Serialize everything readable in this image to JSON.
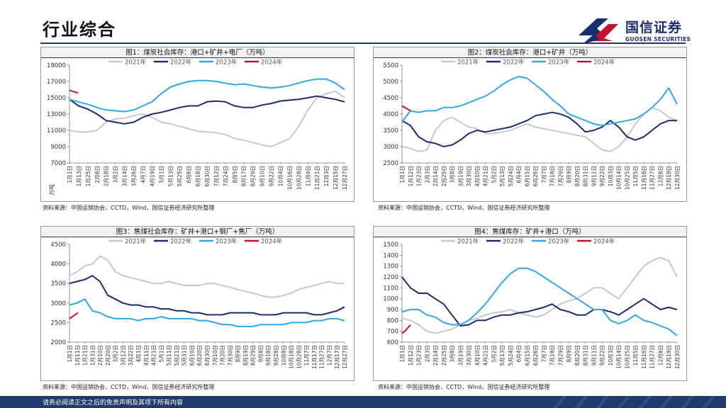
{
  "page": {
    "title": "行业综合",
    "footer": "请务必阅读正文之后的免责声明及其项下所有内容",
    "logo_cn": "国信证券",
    "logo_en": "GUOSEN SECURITIES"
  },
  "colors": {
    "y2021": "#c8c8c8",
    "y2022": "#1a2e6e",
    "y2023": "#2ea9e8",
    "y2024": "#c8102e",
    "brand": "#1f3a6b"
  },
  "chart_data": [
    {
      "id": "chart1",
      "type": "line",
      "title": "图1：煤炭社会库存：港口+矿井+电厂（万吨）",
      "ylabel": "万吨",
      "ylim": [
        7000,
        19000
      ],
      "yticks": [
        7000,
        9000,
        11000,
        13000,
        15000,
        17000,
        19000
      ],
      "xlabels": [
        "1月1日",
        "1月13日",
        "1月25日",
        "2月6日",
        "2月18日",
        "3月2日",
        "3月14日",
        "3月26日",
        "4月7日",
        "4月19日",
        "5月1日",
        "5月13日",
        "5月25日",
        "6月6日",
        "6月18日",
        "6月30日",
        "7月12日",
        "7月24日",
        "8月5日",
        "8月17日",
        "8月29日",
        "9月10日",
        "9月22日",
        "10月4日",
        "10月16日",
        "10月28日",
        "11月9日",
        "11月21日",
        "12月3日",
        "12月15日",
        "12月27日"
      ],
      "source": "资料来源：中国运销协会，CCTD，Wind，国信证券经济研究所整理",
      "series": [
        {
          "name": "2021年",
          "color": "#c8c8c8",
          "values": [
            11000,
            10800,
            10800,
            11000,
            12000,
            12400,
            12500,
            12800,
            13000,
            12600,
            12000,
            11800,
            11500,
            11200,
            10900,
            10800,
            10700,
            10500,
            10000,
            9800,
            9500,
            9200,
            9000,
            9500,
            10000,
            11500,
            13500,
            15000,
            15500,
            15800,
            15000
          ]
        },
        {
          "name": "2022年",
          "color": "#1a2e6e",
          "values": [
            14800,
            14000,
            13600,
            13000,
            12200,
            12000,
            11800,
            12000,
            12600,
            13000,
            13200,
            13500,
            13800,
            14000,
            14000,
            14500,
            14600,
            14500,
            14000,
            13800,
            13800,
            14100,
            14300,
            14600,
            14700,
            14800,
            15000,
            15200,
            15000,
            14800,
            14500
          ]
        },
        {
          "name": "2023年",
          "color": "#2ea9e8",
          "values": [
            14800,
            14500,
            14200,
            13800,
            13500,
            13400,
            13300,
            13500,
            14000,
            14500,
            15500,
            16300,
            16700,
            17000,
            17100,
            17100,
            17000,
            16800,
            16600,
            16700,
            16500,
            16300,
            16200,
            16300,
            16500,
            16800,
            17100,
            17300,
            17300,
            16800,
            16000
          ]
        },
        {
          "name": "2024年",
          "color": "#c8102e",
          "values": [
            15900,
            15800,
            15700,
            15600
          ]
        }
      ]
    },
    {
      "id": "chart2",
      "type": "line",
      "title": "图2：煤炭社会库存：港口+矿井（万吨）",
      "ylabel": "",
      "ylim": [
        2500,
        5500
      ],
      "yticks": [
        2500,
        3000,
        3500,
        4000,
        4500,
        5000,
        5500
      ],
      "xlabels": [
        "1月1日",
        "1月12日",
        "1月23日",
        "2月3日",
        "2月14日",
        "2月25日",
        "3月8日",
        "3月19日",
        "3月30日",
        "4月10日",
        "4月21日",
        "5月2日",
        "5月13日",
        "5月24日",
        "6月4日",
        "6月15日",
        "6月26日",
        "7月7日",
        "7月18日",
        "7月29日",
        "8月9日",
        "8月20日",
        "8月31日",
        "9月11日",
        "9月22日",
        "10月3日",
        "10月14日",
        "10月25日",
        "11月5日",
        "11月16日",
        "11月27日",
        "12月8日",
        "12月19日",
        "12月30日"
      ],
      "source": "资料来源：中国运销协会，CCTD，Wind，国信证券经济研究所整理",
      "series": [
        {
          "name": "2021年",
          "color": "#c8c8c8",
          "values": [
            3000,
            2950,
            2850,
            2900,
            3500,
            3800,
            3900,
            3750,
            3600,
            3550,
            3400,
            3400,
            3450,
            3500,
            3600,
            3700,
            3600,
            3550,
            3500,
            3450,
            3400,
            3350,
            3300,
            3100,
            2900,
            2850,
            3000,
            3300,
            3700,
            4000,
            4200,
            4100,
            3900,
            3800
          ]
        },
        {
          "name": "2022年",
          "color": "#1a2e6e",
          "values": [
            3800,
            3650,
            3300,
            3150,
            3100,
            3000,
            3050,
            3200,
            3400,
            3500,
            3450,
            3500,
            3550,
            3600,
            3700,
            3800,
            3950,
            4000,
            4050,
            4000,
            3900,
            3700,
            3450,
            3500,
            3600,
            3800,
            3600,
            3300,
            3200,
            3300,
            3500,
            3700,
            3800,
            3800
          ]
        },
        {
          "name": "2023年",
          "color": "#2ea9e8",
          "values": [
            3750,
            4100,
            4050,
            4100,
            4100,
            4200,
            4200,
            4250,
            4350,
            4450,
            4550,
            4700,
            4900,
            5050,
            5150,
            5100,
            4900,
            4700,
            4450,
            4250,
            4000,
            3900,
            3800,
            3700,
            3650,
            3700,
            3750,
            3800,
            3850,
            4000,
            4200,
            4450,
            4800,
            4300
          ]
        },
        {
          "name": "2024年",
          "color": "#c8102e",
          "values": [
            4250,
            4200,
            4150,
            4100
          ]
        }
      ]
    },
    {
      "id": "chart3",
      "type": "line",
      "title": "图3：焦煤社会库存：矿井+港口+钢厂+焦厂（万吨）",
      "ylabel": "",
      "ylim": [
        2000,
        4500
      ],
      "yticks": [
        2000,
        2500,
        3000,
        3500,
        4000,
        4500
      ],
      "xlabels": [
        "1月1日",
        "1月11日",
        "1月21日",
        "1月31日",
        "2月10日",
        "2月20日",
        "3月2日",
        "3月12日",
        "3月22日",
        "4月1日",
        "4月11日",
        "4月21日",
        "5月1日",
        "5月11日",
        "5月21日",
        "5月31日",
        "6月10日",
        "6月20日",
        "6月30日",
        "7月10日",
        "7月20日",
        "7月30日",
        "8月9日",
        "8月19日",
        "8月29日",
        "9月8日",
        "9月18日",
        "9月28日",
        "10月8日",
        "10月18日",
        "10月28日",
        "11月7日",
        "11月17日",
        "11月27日",
        "12月7日",
        "12月17日",
        "12月27日"
      ],
      "source": "资料来源：中国运销协会，CCTD，Wind，国信证券经济研究所整理",
      "series": [
        {
          "name": "2021年",
          "color": "#c8c8c8",
          "values": [
            3700,
            3800,
            3950,
            4000,
            4200,
            4100,
            3800,
            3700,
            3650,
            3600,
            3550,
            3500,
            3500,
            3550,
            3500,
            3450,
            3450,
            3450,
            3500,
            3500,
            3450,
            3400,
            3350,
            3300,
            3250,
            3200,
            3150,
            3150,
            3200,
            3250,
            3350,
            3400,
            3450,
            3500,
            3550,
            3500,
            3500
          ]
        },
        {
          "name": "2022年",
          "color": "#1a2e6e",
          "values": [
            3500,
            3550,
            3600,
            3700,
            3550,
            3200,
            3100,
            3000,
            2950,
            2950,
            2900,
            2900,
            2850,
            2850,
            2800,
            2800,
            2750,
            2750,
            2700,
            2700,
            2700,
            2750,
            2750,
            2750,
            2750,
            2700,
            2700,
            2700,
            2750,
            2750,
            2750,
            2750,
            2700,
            2700,
            2750,
            2800,
            2900
          ]
        },
        {
          "name": "2023年",
          "color": "#2ea9e8",
          "values": [
            2950,
            3000,
            3100,
            2800,
            2750,
            2650,
            2600,
            2600,
            2600,
            2550,
            2600,
            2600,
            2650,
            2600,
            2600,
            2600,
            2600,
            2550,
            2550,
            2500,
            2450,
            2450,
            2400,
            2400,
            2400,
            2450,
            2450,
            2450,
            2450,
            2500,
            2500,
            2500,
            2550,
            2550,
            2600,
            2600,
            2550
          ]
        },
        {
          "name": "2024年",
          "color": "#c8102e",
          "values": [
            2600,
            2650,
            2700,
            2750
          ]
        }
      ]
    },
    {
      "id": "chart4",
      "type": "line",
      "title": "图4：焦煤库存：矿井+港口（万吨）",
      "ylabel": "",
      "ylim": [
        600,
        1500
      ],
      "yticks": [
        600,
        700,
        800,
        900,
        1000,
        1100,
        1200,
        1300,
        1400,
        1500
      ],
      "xlabels": [
        "1月1日",
        "1月12日",
        "1月23日",
        "2月3日",
        "2月14日",
        "2月25日",
        "3月8日",
        "3月19日",
        "3月30日",
        "4月10日",
        "4月21日",
        "5月2日",
        "5月13日",
        "5月24日",
        "6月4日",
        "6月15日",
        "6月26日",
        "7月7日",
        "7月18日",
        "7月29日",
        "8月9日",
        "8月20日",
        "8月31日",
        "9月11日",
        "9月22日",
        "10月3日",
        "10月14日",
        "10月25日",
        "11月5日",
        "11月16日",
        "11月27日",
        "12月8日",
        "12月19日",
        "12月30日"
      ],
      "source": "资料来源：中国运销协会，CCTD，Wind，国信证券经济研究所整理",
      "series": [
        {
          "name": "2021年",
          "color": "#c8c8c8",
          "values": [
            820,
            800,
            760,
            700,
            680,
            700,
            720,
            760,
            800,
            820,
            850,
            870,
            880,
            900,
            870,
            850,
            830,
            850,
            900,
            950,
            980,
            1000,
            1050,
            1100,
            1100,
            1050,
            1000,
            1100,
            1200,
            1300,
            1350,
            1380,
            1350,
            1200
          ]
        },
        {
          "name": "2022年",
          "color": "#1a2e6e",
          "values": [
            1200,
            1100,
            1050,
            1050,
            1000,
            950,
            850,
            750,
            760,
            800,
            800,
            830,
            850,
            850,
            870,
            880,
            900,
            920,
            950,
            900,
            880,
            850,
            850,
            900,
            900,
            880,
            850,
            900,
            950,
            1000,
            950,
            900,
            920,
            900
          ]
        },
        {
          "name": "2023年",
          "color": "#2ea9e8",
          "values": [
            880,
            900,
            900,
            850,
            830,
            780,
            760,
            760,
            800,
            870,
            950,
            1050,
            1150,
            1230,
            1280,
            1280,
            1250,
            1200,
            1150,
            1100,
            1050,
            1000,
            950,
            900,
            900,
            800,
            770,
            800,
            850,
            800,
            780,
            750,
            720,
            660
          ]
        },
        {
          "name": "2024年",
          "color": "#c8102e",
          "values": [
            680,
            700,
            730,
            760
          ]
        }
      ]
    }
  ]
}
